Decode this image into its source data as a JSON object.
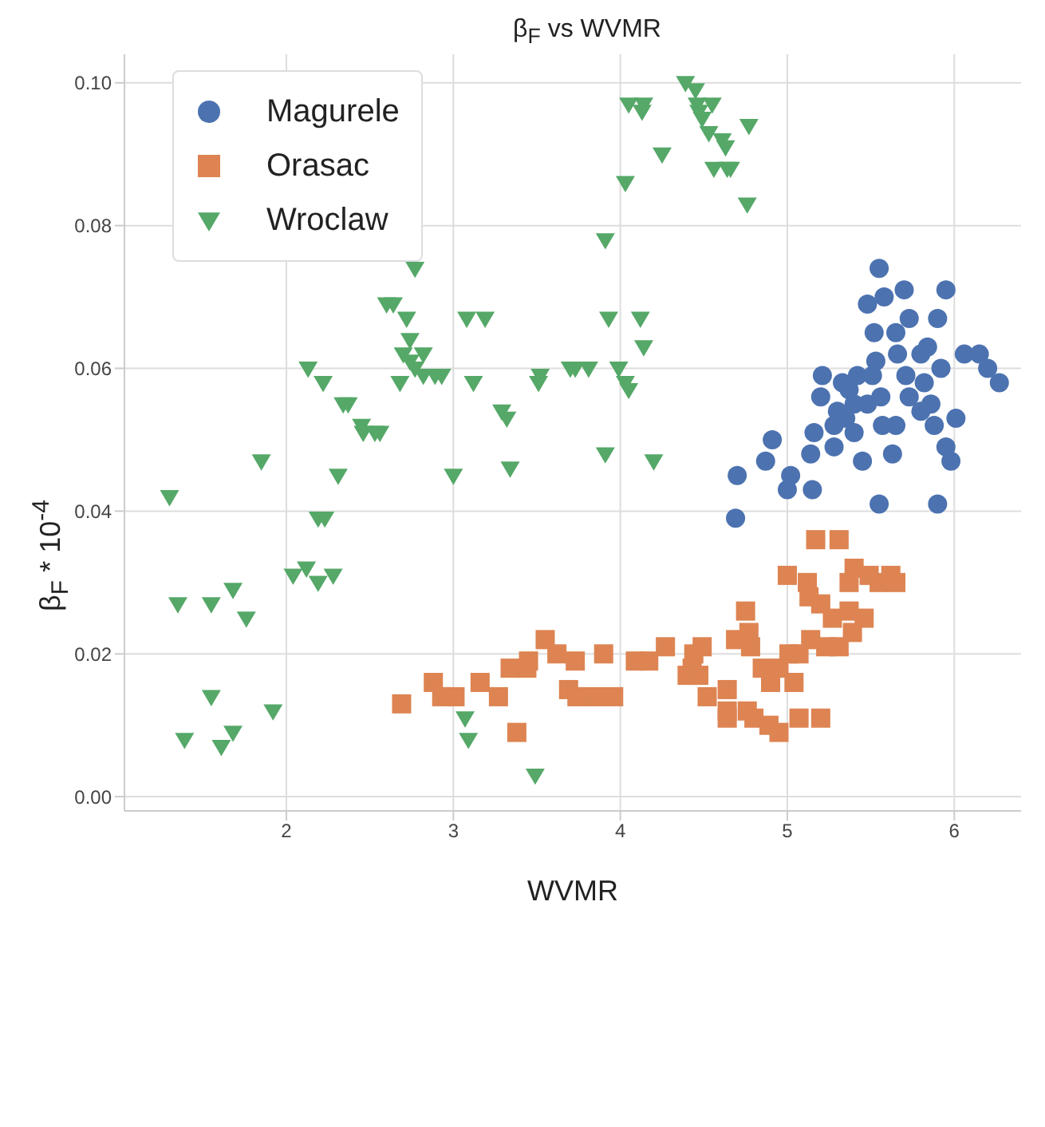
{
  "chart_data": {
    "type": "scatter",
    "title": "β$_{F}$ vs WVMR",
    "xlabel": "WVMR",
    "ylabel": "β$_{F}$ * 10$^{-4}$",
    "xlim": [
      1.03,
      6.4
    ],
    "xticks": [
      2,
      3,
      4,
      5,
      6
    ],
    "ylim": [
      -0.002,
      0.104
    ],
    "yticks": [
      {
        "value": 0,
        "label": "0.00"
      },
      {
        "value": 0.02,
        "label": "0.02"
      },
      {
        "value": 0.04,
        "label": "0.04"
      },
      {
        "value": 0.06,
        "label": "0.06"
      },
      {
        "value": 0.08,
        "label": "0.08"
      },
      {
        "value": 0.1,
        "label": "0.10"
      }
    ],
    "grid": true,
    "legend": "top left",
    "series": [
      {
        "name": "Magurele",
        "color": "#4c72b0",
        "marker": "circle",
        "x": [
          4.69,
          4.7,
          4.87,
          4.91,
          5.0,
          5.02,
          5.15,
          5.16,
          5.21,
          5.2,
          5.28,
          5.3,
          5.33,
          5.37,
          5.42,
          5.45,
          5.48,
          5.53,
          5.55,
          5.58,
          5.7,
          5.73,
          5.65,
          5.66,
          5.65,
          5.63,
          5.57,
          5.52,
          5.56,
          5.71,
          5.8,
          5.84,
          5.82,
          5.92,
          5.86,
          5.88,
          5.95,
          5.98,
          5.9,
          6.01,
          6.06,
          6.15,
          6.2,
          6.27,
          5.95,
          5.9,
          5.48,
          5.35,
          5.4,
          5.8,
          5.51,
          5.4,
          5.28,
          5.14,
          5.73,
          5.55
        ],
        "values": [
          0.039,
          0.045,
          0.047,
          0.05,
          0.043,
          0.045,
          0.043,
          0.051,
          0.059,
          0.056,
          0.052,
          0.054,
          0.058,
          0.057,
          0.059,
          0.047,
          0.055,
          0.061,
          0.041,
          0.07,
          0.071,
          0.067,
          0.065,
          0.062,
          0.052,
          0.048,
          0.052,
          0.065,
          0.056,
          0.059,
          0.062,
          0.063,
          0.058,
          0.06,
          0.055,
          0.052,
          0.049,
          0.047,
          0.041,
          0.053,
          0.062,
          0.062,
          0.06,
          0.058,
          0.071,
          0.067,
          0.069,
          0.053,
          0.051,
          0.054,
          0.059,
          0.055,
          0.049,
          0.048,
          0.056,
          0.074
        ]
      },
      {
        "name": "Orasac",
        "color": "#dd8452",
        "marker": "square",
        "x": [
          2.69,
          2.88,
          2.93,
          3.01,
          3.16,
          3.44,
          3.45,
          3.69,
          3.55,
          3.62,
          3.74,
          3.85,
          3.96,
          3.73,
          3.9,
          4.09,
          4.17,
          4.27,
          4.43,
          4.4,
          4.49,
          4.44,
          4.52,
          4.47,
          4.64,
          4.64,
          4.75,
          4.78,
          4.69,
          4.77,
          4.64,
          4.8,
          4.89,
          4.95,
          4.85,
          4.9,
          5.04,
          4.95,
          5.01,
          5.07,
          5.14,
          5.23,
          5.31,
          5.39,
          5.27,
          5.37,
          5.46,
          5.4,
          5.31,
          5.17,
          5.0,
          5.12,
          5.13,
          5.2,
          5.37,
          5.49,
          5.55,
          5.62,
          5.65,
          5.2,
          5.07,
          3.38,
          4.76,
          3.27,
          3.34
        ],
        "values": [
          0.013,
          0.016,
          0.014,
          0.014,
          0.016,
          0.018,
          0.019,
          0.015,
          0.022,
          0.02,
          0.014,
          0.014,
          0.014,
          0.019,
          0.02,
          0.019,
          0.019,
          0.021,
          0.018,
          0.017,
          0.021,
          0.02,
          0.014,
          0.017,
          0.015,
          0.012,
          0.026,
          0.021,
          0.022,
          0.023,
          0.011,
          0.011,
          0.01,
          0.009,
          0.018,
          0.016,
          0.016,
          0.018,
          0.02,
          0.02,
          0.022,
          0.021,
          0.021,
          0.023,
          0.025,
          0.026,
          0.025,
          0.032,
          0.036,
          0.036,
          0.031,
          0.03,
          0.028,
          0.027,
          0.03,
          0.031,
          0.03,
          0.031,
          0.03,
          0.011,
          0.011,
          0.009,
          0.012,
          0.014,
          0.018
        ]
      },
      {
        "name": "Wroclaw",
        "color": "#55a868",
        "marker": "triangle",
        "x": [
          1.3,
          1.35,
          1.55,
          1.68,
          1.76,
          1.85,
          1.55,
          1.39,
          1.61,
          1.68,
          1.92,
          2.04,
          2.12,
          2.19,
          2.28,
          2.19,
          2.23,
          2.31,
          2.13,
          2.22,
          2.34,
          2.37,
          2.45,
          2.46,
          2.53,
          2.56,
          2.6,
          2.64,
          2.72,
          2.74,
          2.74,
          2.77,
          2.7,
          2.68,
          2.77,
          2.82,
          2.82,
          2.89,
          2.93,
          3.0,
          3.08,
          3.19,
          3.12,
          3.29,
          3.32,
          3.34,
          3.52,
          3.51,
          3.7,
          3.73,
          3.81,
          3.91,
          3.91,
          3.93,
          3.99,
          4.03,
          4.05,
          4.12,
          4.14,
          4.03,
          4.05,
          4.14,
          4.13,
          4.25,
          4.39,
          4.45,
          4.46,
          4.47,
          4.49,
          4.53,
          4.55,
          4.61,
          4.63,
          4.56,
          4.64,
          4.66,
          4.77,
          4.76,
          3.07,
          3.09,
          3.49,
          4.2
        ],
        "values": [
          0.042,
          0.027,
          0.027,
          0.029,
          0.025,
          0.047,
          0.014,
          0.008,
          0.007,
          0.009,
          0.012,
          0.031,
          0.032,
          0.03,
          0.031,
          0.039,
          0.039,
          0.045,
          0.06,
          0.058,
          0.055,
          0.055,
          0.052,
          0.051,
          0.051,
          0.051,
          0.069,
          0.069,
          0.067,
          0.064,
          0.061,
          0.074,
          0.062,
          0.058,
          0.06,
          0.062,
          0.059,
          0.059,
          0.059,
          0.045,
          0.067,
          0.067,
          0.058,
          0.054,
          0.053,
          0.046,
          0.059,
          0.058,
          0.06,
          0.06,
          0.06,
          0.048,
          0.078,
          0.067,
          0.06,
          0.058,
          0.057,
          0.067,
          0.063,
          0.086,
          0.097,
          0.097,
          0.096,
          0.09,
          0.1,
          0.099,
          0.097,
          0.096,
          0.095,
          0.093,
          0.097,
          0.092,
          0.091,
          0.088,
          0.088,
          0.088,
          0.094,
          0.083,
          0.011,
          0.008,
          0.003,
          0.047
        ]
      }
    ]
  }
}
